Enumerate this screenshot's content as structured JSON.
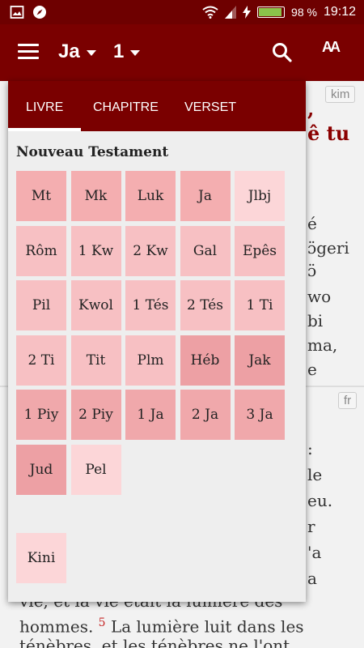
{
  "status_bar": {
    "battery": "98 %",
    "battery_level": 0.98,
    "time": "19:12",
    "icons": [
      "image-icon",
      "compass-icon",
      "wifi-icon",
      "signal-icon",
      "charging-icon"
    ]
  },
  "toolbar": {
    "book": "Ja",
    "chapter": "1",
    "icons": [
      "menu-icon",
      "search-icon",
      "text-size-icon"
    ],
    "text_size_glyph": "AA"
  },
  "background": {
    "lang_top": "kim",
    "lang_bottom": "fr",
    "top_fragments": [
      ",",
      "ê tu",
      "é",
      "ɔ̈geri",
      "ɔ̈",
      "wo",
      "bi",
      "ma,",
      "e"
    ],
    "bottom_fragments": [
      ":",
      "le",
      "eu.",
      "r",
      "'a",
      "a"
    ],
    "bottom_line1": "vie, et la vie était la lumière des",
    "bottom_line2_start": "hommes.",
    "verse_number": "5",
    "bottom_line2_rest": "La lumière luit dans les",
    "bottom_line3": "ténèbres, et les ténèbres ne l'ont"
  },
  "popup": {
    "tabs": [
      "LIVRE",
      "CHAPITRE",
      "VERSET"
    ],
    "active_tab": "LIVRE",
    "section_title": "Nouveau Testament",
    "books": [
      {
        "label": "Mt",
        "color": "#f4aeb0"
      },
      {
        "label": "Mk",
        "color": "#f4aeb0"
      },
      {
        "label": "Luk",
        "color": "#f4aeb0"
      },
      {
        "label": "Ja",
        "color": "#f4aeb0"
      },
      {
        "label": "Jlbj",
        "color": "#fcd6d8"
      },
      {
        "label": "Rôm",
        "color": "#f7c0c3"
      },
      {
        "label": "1 Kw",
        "color": "#f7c0c3"
      },
      {
        "label": "2 Kw",
        "color": "#f7c0c3"
      },
      {
        "label": "Gal",
        "color": "#f7c0c3"
      },
      {
        "label": "Epês",
        "color": "#f7c0c3"
      },
      {
        "label": "Pil",
        "color": "#f7c0c3"
      },
      {
        "label": "Kwol",
        "color": "#f7c0c3"
      },
      {
        "label": "1 Tés",
        "color": "#f7c0c3"
      },
      {
        "label": "2 Tés",
        "color": "#f7c0c3"
      },
      {
        "label": "1 Ti",
        "color": "#f7c0c3"
      },
      {
        "label": "2 Ti",
        "color": "#f7c0c3"
      },
      {
        "label": "Tit",
        "color": "#f7c0c3"
      },
      {
        "label": "Plm",
        "color": "#f7c0c3"
      },
      {
        "label": "Héb",
        "color": "#eda0a4"
      },
      {
        "label": "Jak",
        "color": "#eda0a4"
      },
      {
        "label": "1 Piy",
        "color": "#f0a8ab"
      },
      {
        "label": "2 Piy",
        "color": "#f0a8ab"
      },
      {
        "label": "1 Ja",
        "color": "#f0a8ab"
      },
      {
        "label": "2 Ja",
        "color": "#f0a8ab"
      },
      {
        "label": "3 Ja",
        "color": "#f0a8ab"
      },
      {
        "label": "Jud",
        "color": "#eda0a4"
      },
      {
        "label": "Pel",
        "color": "#fcd6d8"
      }
    ],
    "extra": {
      "label": "Kini",
      "color": "#fcd6d8"
    }
  },
  "colors": {
    "status_bar": "#6e0000",
    "toolbar": "#7a0000",
    "accent_red": "#8b0000"
  }
}
